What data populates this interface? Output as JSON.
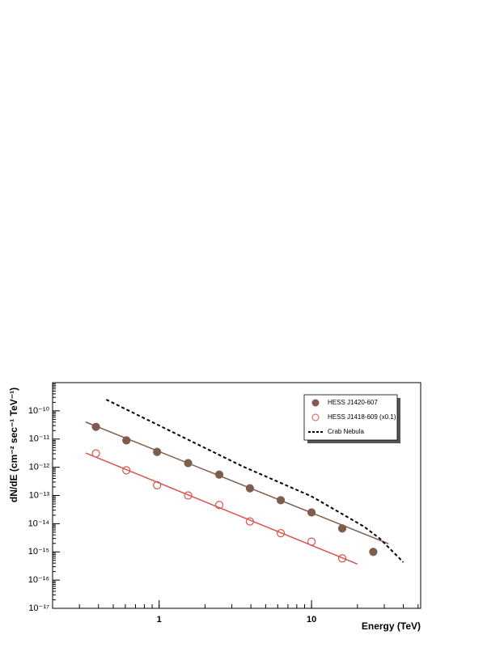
{
  "chart_data": {
    "type": "scatter",
    "log_x": true,
    "log_y": true,
    "x_label": "Energy (TeV)",
    "y_label": "dN/dE (cm⁻² sec⁻¹ TeV⁻¹)",
    "xlim": [
      0.2,
      52
    ],
    "ylim": [
      1e-17,
      1e-09
    ],
    "xticks": [
      1,
      10
    ],
    "yticks": [
      {
        "value": 1e-17,
        "label": "10⁻¹⁷"
      },
      {
        "value": 1e-16,
        "label": "10⁻¹⁶"
      },
      {
        "value": 1e-15,
        "label": "10⁻¹⁵"
      },
      {
        "value": 1e-14,
        "label": "10⁻¹⁴"
      },
      {
        "value": 1e-13,
        "label": "10⁻¹³"
      },
      {
        "value": 1e-12,
        "label": "10⁻¹²"
      },
      {
        "value": 1e-11,
        "label": "10⁻¹¹"
      },
      {
        "value": 1e-10,
        "label": "10⁻¹⁰"
      }
    ],
    "series": [
      {
        "name": "HESS J1420-607",
        "color": "#7f5d4e",
        "marker": "filled",
        "x": [
          0.385,
          0.61,
          0.97,
          1.55,
          2.48,
          3.94,
          6.28,
          10,
          15.9,
          25.4
        ],
        "values": [
          2.7e-11,
          9e-12,
          3.5e-12,
          1.4e-12,
          5.5e-13,
          1.8e-13,
          6.8e-14,
          2.5e-14,
          6.8e-15,
          1e-15
        ],
        "fit": {
          "x": [
            0.33,
            32
          ],
          "values": [
            4e-11,
            1.95e-15
          ]
        }
      },
      {
        "name": "HESS J1418-609 (x0.1)",
        "color": "#d9534f",
        "marker": "open",
        "x": [
          0.385,
          0.61,
          0.97,
          1.55,
          2.48,
          3.94,
          6.28,
          10,
          15.9
        ],
        "values": [
          3.1e-12,
          7.8e-13,
          2.3e-13,
          1e-13,
          4.6e-14,
          1.2e-14,
          4.6e-15,
          2.3e-15,
          5.9e-16
        ],
        "fit": {
          "x": [
            0.33,
            20
          ],
          "values": [
            3.2e-12,
            3.7e-16
          ]
        }
      },
      {
        "name": "Crab Nebula",
        "color": "#000000",
        "marker": "dashed-line",
        "x": [
          0.45,
          3.5,
          10,
          22,
          28,
          40
        ],
        "values": [
          2.5e-10,
          1.1e-12,
          9.3e-14,
          8e-15,
          3e-15,
          4.3e-16
        ]
      }
    ]
  }
}
